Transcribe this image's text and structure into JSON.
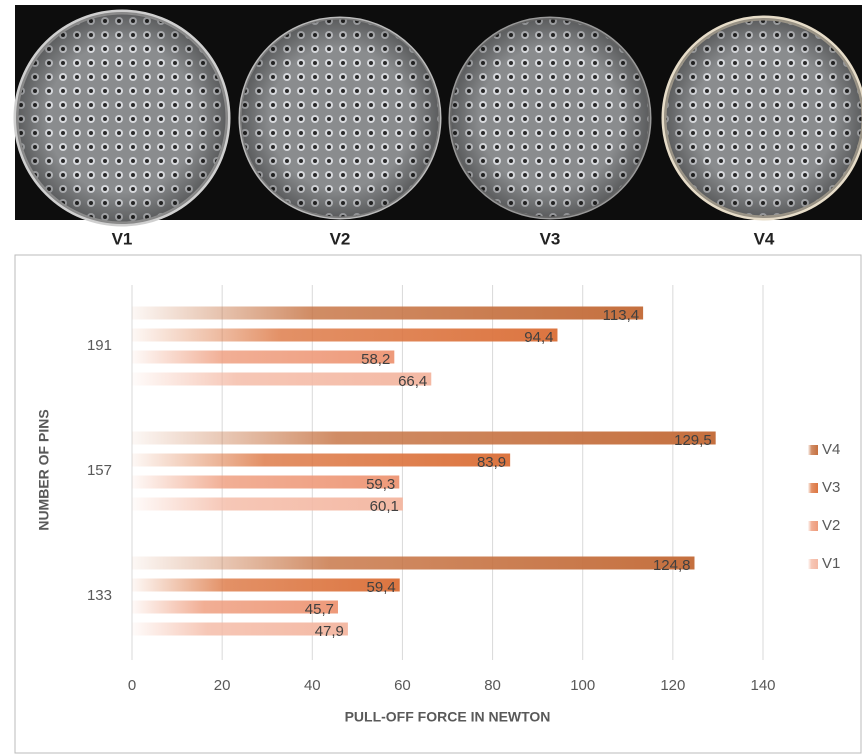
{
  "photo_labels": [
    "V1",
    "V2",
    "V3",
    "V4"
  ],
  "chart_data": {
    "type": "bar",
    "orientation": "horizontal",
    "x_label": "PULL-OFF FORCE IN NEWTON",
    "y_label": "NUMBER OF PINS",
    "categories": [
      "133",
      "157",
      "191"
    ],
    "series": [
      {
        "name": "V1",
        "color": "#f4b9a4",
        "values": [
          47.9,
          60.1,
          66.4
        ],
        "value_labels": [
          "47,9",
          "60,1",
          "66,4"
        ]
      },
      {
        "name": "V2",
        "color": "#ee9a7a",
        "values": [
          45.7,
          59.3,
          58.2
        ],
        "value_labels": [
          "45,7",
          "59,3",
          "58,2"
        ]
      },
      {
        "name": "V3",
        "color": "#dc7540",
        "values": [
          59.4,
          83.9,
          94.4
        ],
        "value_labels": [
          "59,4",
          "83,9",
          "94,4"
        ]
      },
      {
        "name": "V4",
        "color": "#c5703f",
        "values": [
          124.8,
          129.5,
          113.4
        ],
        "value_labels": [
          "124,8",
          "129,5",
          "113,4"
        ]
      }
    ],
    "xlim": [
      0,
      140
    ],
    "xticks": [
      0,
      20,
      40,
      60,
      80,
      100,
      120,
      140
    ],
    "grid": true,
    "legend": "right"
  }
}
